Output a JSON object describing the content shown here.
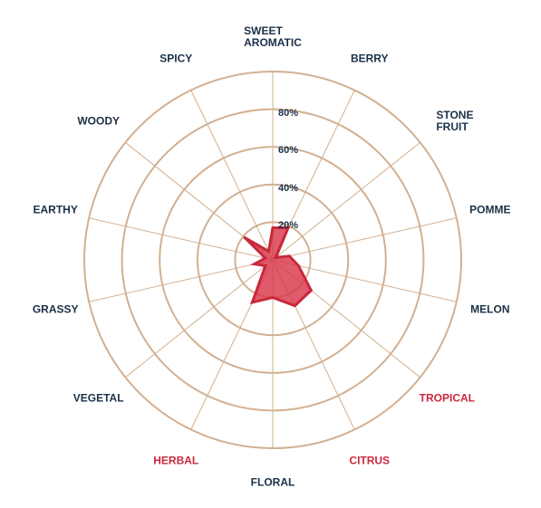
{
  "chart_data": {
    "type": "radar",
    "categories": [
      "SWEET AROMATIC",
      "BERRY",
      "STONE FRUIT",
      "POMME",
      "MELON",
      "TROPICAL",
      "CITRUS",
      "FLORAL",
      "HERBAL",
      "VEGETAL",
      "GRASSY",
      "EARTHY",
      "WOODY",
      "SPICY"
    ],
    "values": [
      17,
      19,
      2,
      9,
      14,
      26,
      27,
      20,
      25,
      5,
      10,
      4,
      19,
      5
    ],
    "r_ticks": [
      "20%",
      "40%",
      "60%",
      "80%"
    ],
    "r_tick_values": [
      20,
      40,
      60,
      80
    ],
    "rmax": 100,
    "highlighted": [
      "TROPICAL",
      "CITRUS",
      "HERBAL"
    ],
    "colors": {
      "grid": "#d2b091",
      "fill": "#d9374a",
      "stroke": "#c8283c",
      "label": "#1b3048",
      "highlight": "#c8283c"
    }
  }
}
